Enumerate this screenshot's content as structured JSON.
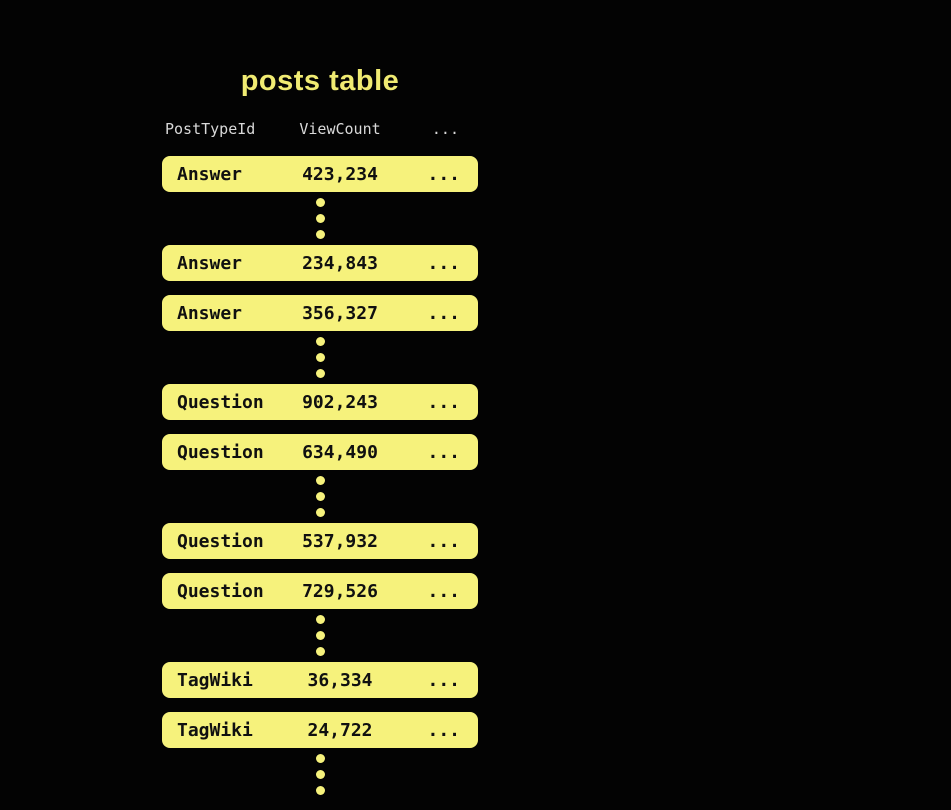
{
  "title": "posts table",
  "columns": {
    "post_type": "PostTypeId",
    "view_count": "ViewCount",
    "more": "..."
  },
  "groups": [
    {
      "rows": [
        {
          "post_type": "Answer",
          "view_count": "423,234",
          "more": "..."
        }
      ]
    },
    {
      "rows": [
        {
          "post_type": "Answer",
          "view_count": "234,843",
          "more": "..."
        },
        {
          "post_type": "Answer",
          "view_count": "356,327",
          "more": "..."
        }
      ]
    },
    {
      "rows": [
        {
          "post_type": "Question",
          "view_count": "902,243",
          "more": "..."
        },
        {
          "post_type": "Question",
          "view_count": "634,490",
          "more": "..."
        }
      ]
    },
    {
      "rows": [
        {
          "post_type": "Question",
          "view_count": "537,932",
          "more": "..."
        },
        {
          "post_type": "Question",
          "view_count": "729,526",
          "more": "..."
        }
      ]
    },
    {
      "rows": [
        {
          "post_type": "TagWiki",
          "view_count": "36,334",
          "more": "..."
        },
        {
          "post_type": "TagWiki",
          "view_count": "24,722",
          "more": "..."
        }
      ]
    }
  ],
  "ellipsis_dot_count": 3,
  "colors": {
    "background": "#030303",
    "row_fill": "#f6f27c",
    "row_text": "#101010",
    "title_text": "#f0eb72",
    "header_text": "#d9d9d9",
    "ellipsis_dot": "#f6f27c"
  }
}
